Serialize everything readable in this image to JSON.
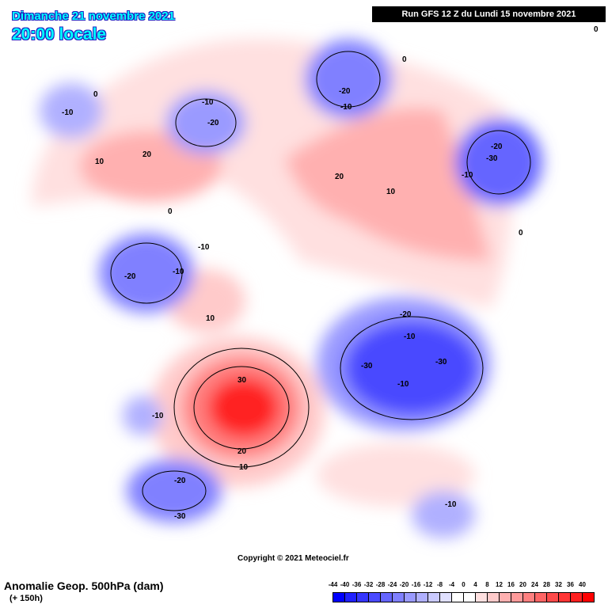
{
  "header": {
    "date": "Dimanche 21 novembre 2021",
    "time": "20:00 locale",
    "run": "Run GFS 12 Z du Lundi 15 novembre 2021"
  },
  "footer": {
    "variable": "Anomalie Geop. 500hPa (dam)",
    "forecast": "(+ 150h)",
    "copyright": "Copyright © 2021 Meteociel.fr"
  },
  "colorbar": {
    "labels": [
      "-44",
      "-40",
      "-36",
      "-32",
      "-28",
      "-24",
      "-20",
      "-16",
      "-12",
      "-8",
      "-4",
      "0",
      "4",
      "8",
      "12",
      "16",
      "20",
      "24",
      "28",
      "32",
      "36",
      "40"
    ],
    "colors": [
      "#0000ff",
      "#2020ff",
      "#3535ff",
      "#4a4aff",
      "#6565ff",
      "#8080ff",
      "#9a9aff",
      "#b0b0ff",
      "#cacaff",
      "#e0e0ff",
      "#ffffff",
      "#ffffff",
      "#ffe0e0",
      "#ffcaca",
      "#ffb0b0",
      "#ff9a9a",
      "#ff8080",
      "#ff6565",
      "#ff4a4a",
      "#ff3535",
      "#ff2020",
      "#ff0000"
    ]
  },
  "contour_labels": [
    "-10",
    "-10",
    "-20",
    "-20",
    "-10",
    "20",
    "10",
    "20",
    "10",
    "-20",
    "-30",
    "-10",
    "-20",
    "-10",
    "-10",
    "10",
    "30",
    "20",
    "10",
    "-10",
    "-20",
    "-30",
    "-30",
    "-30",
    "-10",
    "-20",
    "-10",
    "-10",
    "0",
    "0",
    "0",
    "0",
    "0"
  ]
}
